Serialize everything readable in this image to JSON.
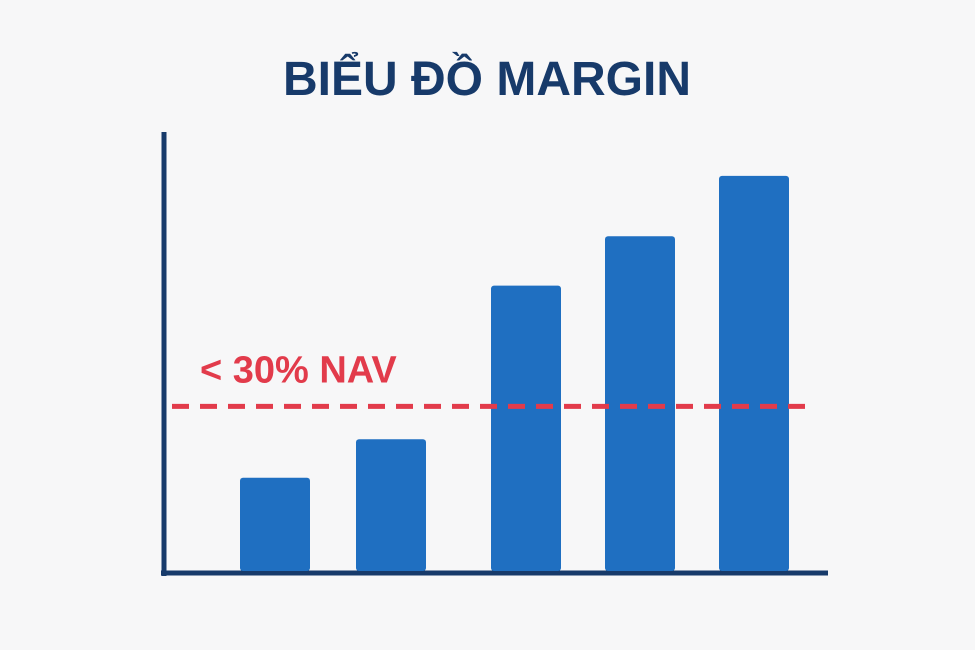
{
  "chart_data": {
    "type": "bar",
    "title": "BIỂU ĐỒ MARGIN",
    "values": [
      17,
      24,
      52,
      61,
      72
    ],
    "color": "#1f6fc1",
    "ylim": [
      0,
      80
    ],
    "threshold": {
      "value": 30,
      "label": "< 30% NAV",
      "color": "#e23b4b"
    },
    "grid": false
  }
}
